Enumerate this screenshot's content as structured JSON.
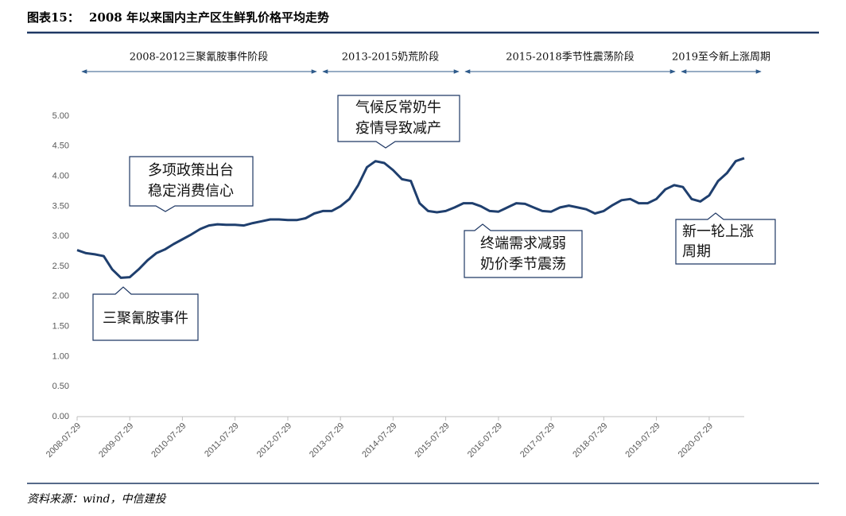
{
  "header": {
    "label": "图表15：",
    "title": "2008 年以来国内主产区生鲜乳价格平均走势"
  },
  "chart_data": {
    "type": "line",
    "x": [
      "2008-07-29",
      "2008-09-29",
      "2008-11-29",
      "2009-01-29",
      "2009-03-29",
      "2009-05-29",
      "2009-07-29",
      "2009-09-29",
      "2009-11-29",
      "2010-01-29",
      "2010-03-29",
      "2010-05-29",
      "2010-07-29",
      "2010-09-29",
      "2010-11-29",
      "2011-01-29",
      "2011-03-29",
      "2011-05-29",
      "2011-07-29",
      "2011-09-29",
      "2011-11-29",
      "2012-01-29",
      "2012-03-29",
      "2012-05-29",
      "2012-07-29",
      "2012-09-29",
      "2012-11-29",
      "2013-01-29",
      "2013-03-29",
      "2013-05-29",
      "2013-07-29",
      "2013-09-29",
      "2013-11-29",
      "2014-01-29",
      "2014-03-29",
      "2014-05-29",
      "2014-07-29",
      "2014-09-29",
      "2014-11-29",
      "2015-01-29",
      "2015-03-29",
      "2015-05-29",
      "2015-07-29",
      "2015-09-29",
      "2015-11-29",
      "2016-01-29",
      "2016-03-29",
      "2016-05-29",
      "2016-07-29",
      "2016-09-29",
      "2016-11-29",
      "2017-01-29",
      "2017-03-29",
      "2017-05-29",
      "2017-07-29",
      "2017-09-29",
      "2017-11-29",
      "2018-01-29",
      "2018-03-29",
      "2018-05-29",
      "2018-07-29",
      "2018-09-29",
      "2018-11-29",
      "2019-01-29",
      "2019-03-29",
      "2019-05-29",
      "2019-07-29",
      "2019-09-29",
      "2019-11-29",
      "2020-01-29",
      "2020-03-29",
      "2020-05-29",
      "2020-07-29",
      "2020-09-29",
      "2020-11-29",
      "2021-01-29",
      "2021-03-29"
    ],
    "series": [
      {
        "color": "#1f3f6e",
        "values": [
          2.77,
          2.72,
          2.7,
          2.67,
          2.45,
          2.31,
          2.32,
          2.45,
          2.6,
          2.72,
          2.78,
          2.87,
          2.95,
          3.03,
          3.12,
          3.18,
          3.2,
          3.19,
          3.19,
          3.18,
          3.22,
          3.25,
          3.28,
          3.28,
          3.27,
          3.27,
          3.3,
          3.38,
          3.42,
          3.42,
          3.5,
          3.62,
          3.85,
          4.15,
          4.25,
          4.22,
          4.1,
          3.95,
          3.92,
          3.55,
          3.42,
          3.4,
          3.42,
          3.48,
          3.55,
          3.55,
          3.5,
          3.42,
          3.41,
          3.48,
          3.55,
          3.54,
          3.48,
          3.42,
          3.41,
          3.48,
          3.51,
          3.48,
          3.45,
          3.38,
          3.42,
          3.52,
          3.6,
          3.62,
          3.55,
          3.55,
          3.62,
          3.78,
          3.85,
          3.82,
          3.62,
          3.58,
          3.68,
          3.92,
          4.05,
          4.25,
          4.3
        ]
      }
    ],
    "xlim": [
      "2008-07-29",
      "2021-03-29"
    ],
    "xticks": [
      "2008-07-29",
      "2009-07-29",
      "2010-07-29",
      "2011-07-29",
      "2012-07-29",
      "2013-07-29",
      "2014-07-29",
      "2015-07-29",
      "2016-07-29",
      "2017-07-29",
      "2018-07-29",
      "2019-07-29",
      "2020-07-29"
    ],
    "ylim": [
      0,
      5
    ],
    "yticks": [
      {
        "value": 0,
        "label": "0.00"
      },
      {
        "value": 0.5,
        "label": "0.50"
      },
      {
        "value": 1,
        "label": "1.00"
      },
      {
        "value": 1.5,
        "label": "1.50"
      },
      {
        "value": 2,
        "label": "2.00"
      },
      {
        "value": 2.5,
        "label": "2.50"
      },
      {
        "value": 3,
        "label": "3.00"
      },
      {
        "value": 3.5,
        "label": "3.50"
      },
      {
        "value": 4,
        "label": "4.00"
      },
      {
        "value": 4.5,
        "label": "4.50"
      },
      {
        "value": 5,
        "label": "5.00"
      }
    ],
    "grid": false,
    "phases": [
      "2008-2012三聚氰胺事件阶段",
      "2013-2015奶荒阶段",
      "2015-2018季节性震荡阶段",
      "2019至今新上涨周期"
    ],
    "annotations": [
      {
        "lines": [
          "三聚氰胺事件"
        ]
      },
      {
        "lines": [
          "多项政策出台",
          "稳定消费信心"
        ]
      },
      {
        "lines": [
          "气候反常奶牛",
          "疫情导致减产"
        ]
      },
      {
        "lines": [
          "终端需求减弱",
          "奶价季节震荡"
        ]
      },
      {
        "lines": [
          "新一轮上涨",
          "周期"
        ]
      }
    ]
  },
  "source": "资料来源：wind，中信建投"
}
